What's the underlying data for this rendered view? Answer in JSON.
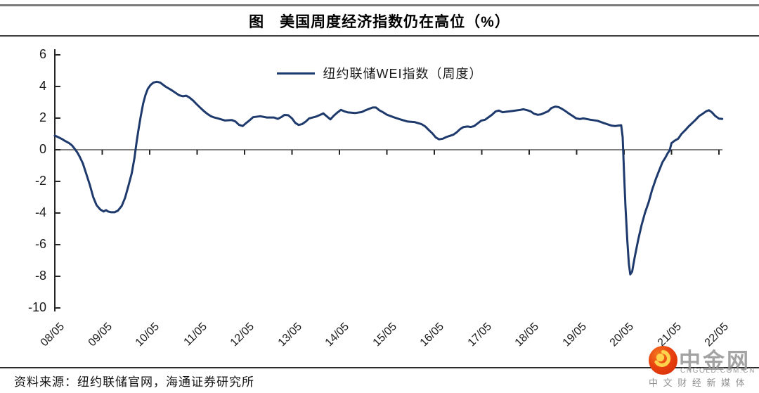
{
  "title": "图　美国周度经济指数仍在高位（%）",
  "legend": "纽约联储WEI指数（周度）",
  "source": "资料来源：纽约联储官网，海通证券研究所",
  "watermark": {
    "name": "中金网",
    "domain": "CNGOLD.COM.CN",
    "tagline": "中 文 财 经 新 媒 体"
  },
  "colors": {
    "line": "#1e3a6d",
    "zero_line": "#7f7f7f",
    "axis": "#262626",
    "label": "#1a1a1a",
    "logo_red": "#e8400f",
    "logo_orange": "#f47a1f",
    "logo_yellow": "#ffd24d",
    "watermark_gray": "#969696"
  },
  "chart_data": {
    "type": "line",
    "title": "图 美国周度经济指数仍在高位（%）",
    "legend_position": "top-center",
    "grid": false,
    "ylim": [
      -10,
      6
    ],
    "y_ticks": [
      6,
      4,
      2,
      0,
      -2,
      -4,
      -6,
      -8,
      -10
    ],
    "x_tick_labels": [
      "08/05",
      "09/05",
      "10/05",
      "11/05",
      "12/05",
      "13/05",
      "14/05",
      "15/05",
      "16/05",
      "17/05",
      "18/05",
      "19/05",
      "20/05",
      "21/05",
      "22/05"
    ],
    "x_unit": "years since tick 08/05 (one unit = one year, ticks at integers)",
    "series": [
      {
        "name": "纽约联储WEI指数（周度）",
        "points": [
          [
            0,
            0.9
          ],
          [
            0.08,
            0.78
          ],
          [
            0.15,
            0.68
          ],
          [
            0.22,
            0.55
          ],
          [
            0.3,
            0.42
          ],
          [
            0.36,
            0.28
          ],
          [
            0.43,
            0.02
          ],
          [
            0.48,
            -0.2
          ],
          [
            0.52,
            -0.42
          ],
          [
            0.59,
            -0.85
          ],
          [
            0.66,
            -1.5
          ],
          [
            0.74,
            -2.25
          ],
          [
            0.81,
            -3.0
          ],
          [
            0.88,
            -3.5
          ],
          [
            0.96,
            -3.78
          ],
          [
            1.03,
            -3.9
          ],
          [
            1.08,
            -3.82
          ],
          [
            1.12,
            -3.9
          ],
          [
            1.19,
            -3.95
          ],
          [
            1.26,
            -3.95
          ],
          [
            1.33,
            -3.85
          ],
          [
            1.41,
            -3.55
          ],
          [
            1.48,
            -3.05
          ],
          [
            1.55,
            -2.3
          ],
          [
            1.62,
            -1.5
          ],
          [
            1.68,
            -0.5
          ],
          [
            1.72,
            0.4
          ],
          [
            1.76,
            1.2
          ],
          [
            1.81,
            2.1
          ],
          [
            1.86,
            2.9
          ],
          [
            1.91,
            3.45
          ],
          [
            1.96,
            3.85
          ],
          [
            2.02,
            4.1
          ],
          [
            2.08,
            4.25
          ],
          [
            2.15,
            4.3
          ],
          [
            2.22,
            4.25
          ],
          [
            2.33,
            4.0
          ],
          [
            2.47,
            3.75
          ],
          [
            2.62,
            3.45
          ],
          [
            2.7,
            3.38
          ],
          [
            2.77,
            3.42
          ],
          [
            2.84,
            3.3
          ],
          [
            2.92,
            3.1
          ],
          [
            2.99,
            2.88
          ],
          [
            3.07,
            2.65
          ],
          [
            3.14,
            2.45
          ],
          [
            3.21,
            2.28
          ],
          [
            3.29,
            2.12
          ],
          [
            3.36,
            2.04
          ],
          [
            3.44,
            1.98
          ],
          [
            3.59,
            1.85
          ],
          [
            3.73,
            1.88
          ],
          [
            3.81,
            1.78
          ],
          [
            3.88,
            1.58
          ],
          [
            3.96,
            1.5
          ],
          [
            4.03,
            1.68
          ],
          [
            4.1,
            1.85
          ],
          [
            4.18,
            2.06
          ],
          [
            4.33,
            2.12
          ],
          [
            4.47,
            2.04
          ],
          [
            4.62,
            2.04
          ],
          [
            4.7,
            1.95
          ],
          [
            4.77,
            2.06
          ],
          [
            4.84,
            2.2
          ],
          [
            4.92,
            2.18
          ],
          [
            5,
            1.98
          ],
          [
            5.07,
            1.7
          ],
          [
            5.14,
            1.57
          ],
          [
            5.21,
            1.62
          ],
          [
            5.29,
            1.78
          ],
          [
            5.36,
            1.98
          ],
          [
            5.51,
            2.1
          ],
          [
            5.59,
            2.2
          ],
          [
            5.66,
            2.3
          ],
          [
            5.74,
            2.1
          ],
          [
            5.81,
            1.92
          ],
          [
            5.88,
            2.15
          ],
          [
            5.96,
            2.36
          ],
          [
            6.03,
            2.52
          ],
          [
            6.1,
            2.43
          ],
          [
            6.18,
            2.36
          ],
          [
            6.33,
            2.32
          ],
          [
            6.47,
            2.38
          ],
          [
            6.55,
            2.5
          ],
          [
            6.7,
            2.67
          ],
          [
            6.77,
            2.67
          ],
          [
            6.84,
            2.5
          ],
          [
            6.92,
            2.37
          ],
          [
            7,
            2.22
          ],
          [
            7.14,
            2.06
          ],
          [
            7.29,
            1.91
          ],
          [
            7.44,
            1.78
          ],
          [
            7.58,
            1.75
          ],
          [
            7.73,
            1.62
          ],
          [
            7.81,
            1.47
          ],
          [
            7.88,
            1.26
          ],
          [
            7.96,
            1.03
          ],
          [
            8.03,
            0.78
          ],
          [
            8.1,
            0.66
          ],
          [
            8.18,
            0.7
          ],
          [
            8.25,
            0.8
          ],
          [
            8.33,
            0.88
          ],
          [
            8.4,
            0.95
          ],
          [
            8.47,
            1.1
          ],
          [
            8.55,
            1.32
          ],
          [
            8.62,
            1.44
          ],
          [
            8.7,
            1.47
          ],
          [
            8.77,
            1.44
          ],
          [
            8.84,
            1.5
          ],
          [
            8.92,
            1.68
          ],
          [
            8.99,
            1.84
          ],
          [
            9.07,
            1.9
          ],
          [
            9.14,
            2.05
          ],
          [
            9.21,
            2.2
          ],
          [
            9.29,
            2.42
          ],
          [
            9.36,
            2.48
          ],
          [
            9.44,
            2.37
          ],
          [
            9.51,
            2.4
          ],
          [
            9.66,
            2.46
          ],
          [
            9.81,
            2.52
          ],
          [
            9.88,
            2.56
          ],
          [
            9.96,
            2.5
          ],
          [
            10.03,
            2.43
          ],
          [
            10.1,
            2.28
          ],
          [
            10.18,
            2.21
          ],
          [
            10.25,
            2.24
          ],
          [
            10.4,
            2.43
          ],
          [
            10.47,
            2.64
          ],
          [
            10.55,
            2.73
          ],
          [
            10.62,
            2.7
          ],
          [
            10.7,
            2.57
          ],
          [
            10.77,
            2.43
          ],
          [
            10.84,
            2.28
          ],
          [
            10.92,
            2.13
          ],
          [
            10.99,
            1.98
          ],
          [
            11.07,
            1.94
          ],
          [
            11.14,
            1.98
          ],
          [
            11.29,
            1.9
          ],
          [
            11.44,
            1.83
          ],
          [
            11.58,
            1.68
          ],
          [
            11.73,
            1.53
          ],
          [
            11.81,
            1.5
          ],
          [
            11.88,
            1.53
          ],
          [
            11.94,
            1.55
          ],
          [
            11.97,
            0.8
          ],
          [
            12,
            -1.5
          ],
          [
            12.03,
            -3.6
          ],
          [
            12.07,
            -5.8
          ],
          [
            12.1,
            -7.2
          ],
          [
            12.13,
            -7.88
          ],
          [
            12.17,
            -7.7
          ],
          [
            12.22,
            -6.85
          ],
          [
            12.3,
            -5.65
          ],
          [
            12.37,
            -4.75
          ],
          [
            12.44,
            -4.0
          ],
          [
            12.52,
            -3.3
          ],
          [
            12.59,
            -2.55
          ],
          [
            12.67,
            -1.85
          ],
          [
            12.74,
            -1.3
          ],
          [
            12.81,
            -0.78
          ],
          [
            12.87,
            -0.5
          ],
          [
            12.92,
            -0.22
          ],
          [
            12.96,
            -0.05
          ],
          [
            13,
            0.42
          ],
          [
            13.07,
            0.58
          ],
          [
            13.14,
            0.7
          ],
          [
            13.21,
            1.0
          ],
          [
            13.29,
            1.24
          ],
          [
            13.36,
            1.47
          ],
          [
            13.44,
            1.7
          ],
          [
            13.51,
            1.9
          ],
          [
            13.58,
            2.12
          ],
          [
            13.66,
            2.28
          ],
          [
            13.73,
            2.43
          ],
          [
            13.79,
            2.5
          ],
          [
            13.85,
            2.37
          ],
          [
            13.92,
            2.14
          ],
          [
            14,
            1.97
          ],
          [
            14.07,
            1.95
          ]
        ]
      }
    ]
  }
}
